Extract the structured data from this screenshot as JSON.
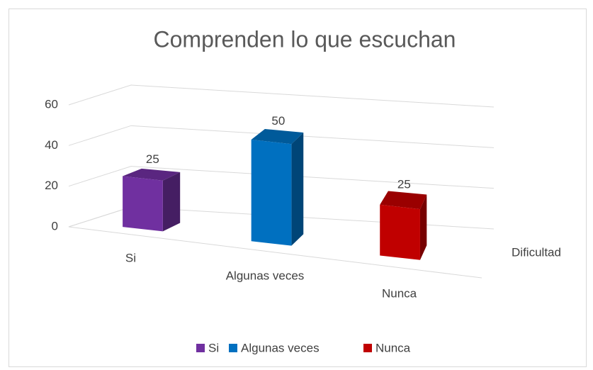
{
  "chart_data": {
    "type": "bar3d",
    "title": "Comprenden lo que escuchan",
    "categories": [
      "Si",
      "Algunas veces",
      "Nunca"
    ],
    "values": [
      25,
      50,
      25
    ],
    "colors": [
      "#7030a0",
      "#0070c0",
      "#c00000"
    ],
    "x_label": "Dificultad",
    "ylim": [
      0,
      60
    ],
    "yticks": [
      0,
      20,
      40,
      60
    ],
    "grid": true,
    "legend": "bottom"
  }
}
